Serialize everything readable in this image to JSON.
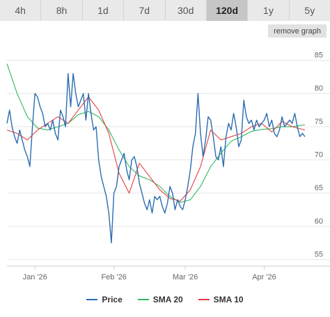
{
  "range_tabs": [
    {
      "label": "4h",
      "active": false
    },
    {
      "label": "8h",
      "active": false
    },
    {
      "label": "1d",
      "active": false
    },
    {
      "label": "7d",
      "active": false
    },
    {
      "label": "30d",
      "active": false
    },
    {
      "label": "120d",
      "active": true
    },
    {
      "label": "1y",
      "active": false
    },
    {
      "label": "5y",
      "active": false
    }
  ],
  "remove_graph_label": "remove graph",
  "colors": {
    "price": "#2b6cb0",
    "sma20": "#2eb85c",
    "sma10": "#e53e3e",
    "grid": "#e6e6e6",
    "axis_text": "#666666"
  },
  "legend": [
    {
      "label": "Price",
      "color": "#2b6cb0"
    },
    {
      "label": "SMA 20",
      "color": "#2eb85c"
    },
    {
      "label": "SMA 10",
      "color": "#e53e3e"
    }
  ],
  "chart_data": {
    "type": "line",
    "y_ticks": [
      55,
      60,
      65,
      70,
      75,
      80,
      85
    ],
    "ylim": [
      54,
      88
    ],
    "x_labels": [
      {
        "label": "Jan '26",
        "day": 11
      },
      {
        "label": "Feb '26",
        "day": 42
      },
      {
        "label": "Mar '26",
        "day": 70
      },
      {
        "label": "Apr '26",
        "day": 101
      }
    ],
    "x_range": [
      0,
      117
    ],
    "grid": true,
    "series": [
      {
        "name": "Price",
        "x": [
          0,
          1,
          2,
          3,
          4,
          5,
          6,
          7,
          8,
          9,
          10,
          11,
          12,
          13,
          14,
          15,
          16,
          17,
          18,
          19,
          20,
          21,
          22,
          23,
          24,
          25,
          26,
          27,
          28,
          29,
          30,
          31,
          32,
          33,
          34,
          35,
          36,
          37,
          38,
          39,
          40,
          41,
          42,
          43,
          44,
          45,
          46,
          47,
          48,
          49,
          50,
          51,
          52,
          53,
          54,
          55,
          56,
          57,
          58,
          59,
          60,
          61,
          62,
          63,
          64,
          65,
          66,
          67,
          68,
          69,
          70,
          71,
          72,
          73,
          74,
          75,
          76,
          77,
          78,
          79,
          80,
          81,
          82,
          83,
          84,
          85,
          86,
          87,
          88,
          89,
          90,
          91,
          92,
          93,
          94,
          95,
          96,
          97,
          98,
          99,
          100,
          101,
          102,
          103,
          104,
          105,
          106,
          107,
          108,
          109,
          110,
          111,
          112,
          113,
          114,
          115,
          116,
          117
        ],
        "values": [
          75.5,
          77.5,
          75,
          73.5,
          72.5,
          74.5,
          73,
          71.5,
          70.5,
          69,
          75,
          80,
          79.5,
          78,
          77,
          75,
          75.5,
          74.5,
          76,
          74,
          73,
          77.5,
          76.5,
          75,
          83,
          78,
          83,
          80,
          78,
          79,
          80,
          76,
          80,
          77,
          74.5,
          75,
          70,
          67.5,
          66,
          64.5,
          62,
          57.5,
          65,
          66,
          69,
          70,
          71,
          68.5,
          67,
          70,
          70.5,
          69,
          66.5,
          65,
          63.5,
          62.5,
          64,
          62,
          64.5,
          64,
          64.5,
          63,
          62,
          63.5,
          66,
          65,
          62.5,
          64,
          63,
          62.5,
          64,
          66,
          68.5,
          72,
          74,
          80,
          74,
          70.5,
          73,
          76.5,
          76,
          73.5,
          70.5,
          70,
          72,
          69,
          73.5,
          75.5,
          74.5,
          77,
          75,
          72,
          73,
          79,
          76.5,
          75.5,
          76,
          74.5,
          76,
          75,
          75.5,
          76,
          77,
          75,
          76,
          74,
          73.5,
          74.5,
          76.5,
          75,
          75.5,
          76,
          75.5,
          77,
          75,
          73.5,
          74,
          73.5
        ]
      },
      {
        "name": "SMA 20",
        "x": [
          0,
          4,
          8,
          12,
          16,
          20,
          24,
          28,
          32,
          36,
          40,
          44,
          48,
          52,
          56,
          60,
          64,
          68,
          72,
          76,
          80,
          84,
          88,
          92,
          96,
          100,
          104,
          108,
          112,
          117
        ],
        "values": [
          84.5,
          80,
          76.5,
          74.8,
          74.5,
          75,
          75.5,
          76.8,
          77.3,
          76.5,
          74.5,
          71.5,
          69,
          67.6,
          67,
          66,
          64.5,
          63.6,
          64,
          66,
          69,
          71,
          72.8,
          73.5,
          74.3,
          74.6,
          74.7,
          75,
          75,
          75.3
        ]
      },
      {
        "name": "SMA 10",
        "x": [
          0,
          4,
          8,
          12,
          16,
          20,
          24,
          28,
          32,
          36,
          40,
          44,
          48,
          52,
          56,
          60,
          64,
          68,
          72,
          76,
          80,
          84,
          88,
          92,
          96,
          100,
          104,
          108,
          112,
          117
        ],
        "values": [
          74.5,
          74,
          73,
          74.5,
          75.5,
          76.5,
          75.5,
          77.5,
          79.5,
          77.5,
          74,
          68,
          65,
          69.5,
          67.5,
          65.5,
          64.2,
          63.8,
          65.5,
          69,
          74.5,
          73,
          73.5,
          74,
          75,
          75.5,
          74.2,
          75.8,
          75,
          74.5
        ]
      }
    ]
  }
}
